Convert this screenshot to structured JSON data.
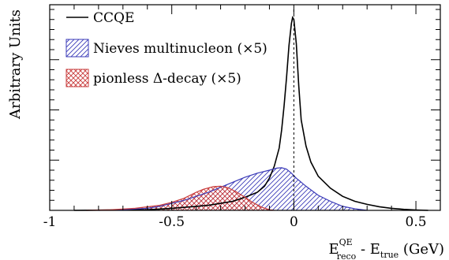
{
  "chart_data": {
    "type": "area",
    "xlim": [
      -1.0,
      0.6
    ],
    "ylim": [
      0,
      1.0
    ],
    "grid": false,
    "legend_position": "top-left",
    "ylabel": "Arbitrary Units",
    "xlabel": {
      "main1": "E",
      "sup1": "QE",
      "sub1": "reco",
      "mid": " - E",
      "sub2": "true",
      "unit": " (GeV)"
    },
    "x_ticks": [
      {
        "value": -1.0,
        "label": "-1"
      },
      {
        "value": -0.5,
        "label": "-0.5"
      },
      {
        "value": 0.0,
        "label": "0"
      },
      {
        "value": 0.5,
        "label": "0.5"
      }
    ],
    "x_minor_step": 0.1,
    "y_major_ticks": [
      0.25,
      0.5,
      0.75
    ],
    "y_minor_step": 0.05,
    "reference_line_x": 0.0,
    "series": [
      {
        "name": "CCQE",
        "style": "line",
        "color": "#000000",
        "points": [
          [
            -0.9,
            0.0
          ],
          [
            -0.6,
            0.003
          ],
          [
            -0.5,
            0.01
          ],
          [
            -0.45,
            0.015
          ],
          [
            -0.4,
            0.02
          ],
          [
            -0.35,
            0.025
          ],
          [
            -0.3,
            0.035
          ],
          [
            -0.25,
            0.045
          ],
          [
            -0.2,
            0.065
          ],
          [
            -0.15,
            0.09
          ],
          [
            -0.12,
            0.12
          ],
          [
            -0.1,
            0.16
          ],
          [
            -0.08,
            0.22
          ],
          [
            -0.06,
            0.31
          ],
          [
            -0.05,
            0.4
          ],
          [
            -0.04,
            0.52
          ],
          [
            -0.03,
            0.66
          ],
          [
            -0.02,
            0.82
          ],
          [
            -0.01,
            0.93
          ],
          [
            -0.005,
            0.96
          ],
          [
            0.0,
            0.95
          ],
          [
            0.01,
            0.83
          ],
          [
            0.02,
            0.62
          ],
          [
            0.03,
            0.45
          ],
          [
            0.05,
            0.32
          ],
          [
            0.07,
            0.24
          ],
          [
            0.1,
            0.17
          ],
          [
            0.15,
            0.11
          ],
          [
            0.2,
            0.07
          ],
          [
            0.25,
            0.045
          ],
          [
            0.3,
            0.03
          ],
          [
            0.35,
            0.018
          ],
          [
            0.4,
            0.01
          ],
          [
            0.45,
            0.005
          ],
          [
            0.5,
            0.002
          ],
          [
            0.55,
            0.0
          ]
        ]
      },
      {
        "name": "Nieves multinucleon (×5)",
        "style": "hatched",
        "color": "#3a3ab8",
        "points": [
          [
            -0.8,
            0.0
          ],
          [
            -0.7,
            0.003
          ],
          [
            -0.6,
            0.01
          ],
          [
            -0.55,
            0.02
          ],
          [
            -0.5,
            0.035
          ],
          [
            -0.45,
            0.05
          ],
          [
            -0.4,
            0.07
          ],
          [
            -0.35,
            0.09
          ],
          [
            -0.3,
            0.115
          ],
          [
            -0.25,
            0.14
          ],
          [
            -0.2,
            0.165
          ],
          [
            -0.15,
            0.185
          ],
          [
            -0.1,
            0.2
          ],
          [
            -0.07,
            0.21
          ],
          [
            -0.05,
            0.212
          ],
          [
            -0.03,
            0.205
          ],
          [
            -0.01,
            0.185
          ],
          [
            0.01,
            0.16
          ],
          [
            0.05,
            0.12
          ],
          [
            0.1,
            0.075
          ],
          [
            0.15,
            0.045
          ],
          [
            0.2,
            0.02
          ],
          [
            0.25,
            0.008
          ],
          [
            0.3,
            0.0
          ]
        ]
      },
      {
        "name": "pionless Δ-decay (×5)",
        "style": "crosshatched",
        "color": "#c83c3c",
        "points": [
          [
            -0.85,
            0.0
          ],
          [
            -0.75,
            0.003
          ],
          [
            -0.65,
            0.01
          ],
          [
            -0.55,
            0.025
          ],
          [
            -0.5,
            0.04
          ],
          [
            -0.45,
            0.06
          ],
          [
            -0.4,
            0.09
          ],
          [
            -0.37,
            0.105
          ],
          [
            -0.33,
            0.118
          ],
          [
            -0.3,
            0.12
          ],
          [
            -0.27,
            0.113
          ],
          [
            -0.24,
            0.095
          ],
          [
            -0.2,
            0.065
          ],
          [
            -0.17,
            0.04
          ],
          [
            -0.13,
            0.015
          ],
          [
            -0.1,
            0.003
          ],
          [
            -0.08,
            0.0
          ]
        ]
      }
    ]
  }
}
